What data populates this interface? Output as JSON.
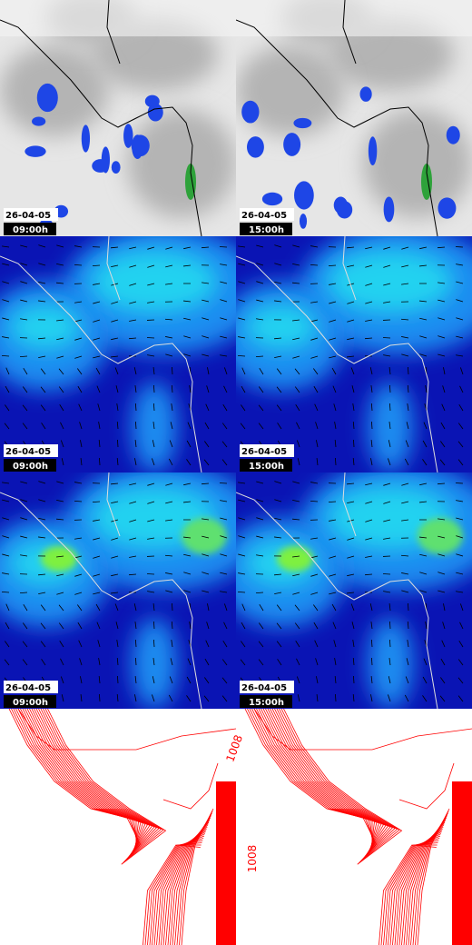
{
  "panels": [
    {
      "date": "26-04-05",
      "time": "09:00h"
    },
    {
      "date": "26-04-05",
      "time": "15:00h"
    },
    {
      "date": "26-04-05",
      "time": "09:00h"
    },
    {
      "date": "26-04-05",
      "time": "15:00h"
    },
    {
      "date": "26-04-05",
      "time": "09:00h"
    },
    {
      "date": "26-04-05",
      "time": "15:00h"
    }
  ],
  "contour_labels": [
    "1008",
    "1008"
  ]
}
